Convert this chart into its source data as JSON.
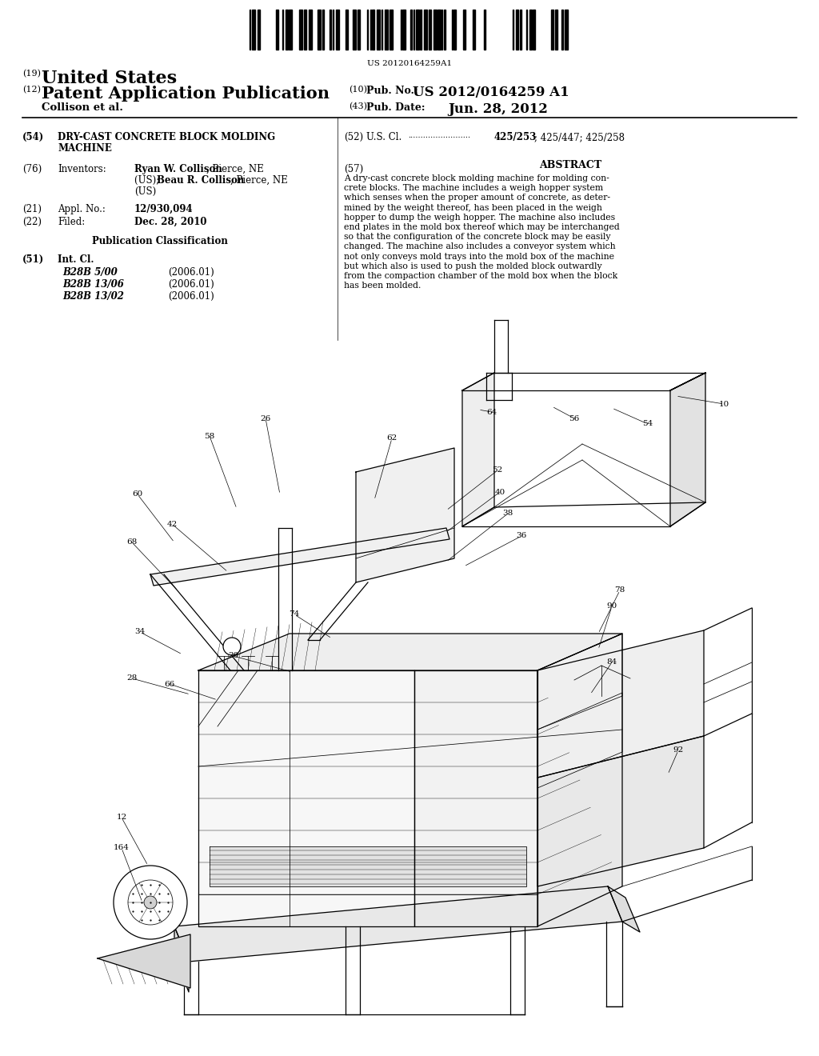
{
  "background_color": "#ffffff",
  "barcode_text": "US 20120164259A1",
  "header": {
    "num19": "(19)",
    "title19": "United States",
    "num12": "(12)",
    "title12": "Patent Application Publication",
    "num10": "(10)",
    "label10": "Pub. No.:",
    "pubno": "US 2012/0164259 A1",
    "author": "Collison et al.",
    "num43": "(43)",
    "label43": "Pub. Date:",
    "pubdate": "Jun. 28, 2012"
  },
  "left_col": {
    "num54": "(54)",
    "title54_line1": "DRY-CAST CONCRETE BLOCK MOLDING",
    "title54_line2": "MACHINE",
    "num76": "(76)",
    "label76": "Inventors:",
    "inv1_bold": "Ryan W. Collison",
    "inv1_rest": ", Pierce, NE",
    "inv2_pre": "(US); ",
    "inv2_bold": "Beau R. Collison",
    "inv2_rest": ", Pierce, NE",
    "inv3": "(US)",
    "num21": "(21)",
    "label21": "Appl. No.:",
    "appl_no": "12/930,094",
    "num22": "(22)",
    "label22": "Filed:",
    "filed": "Dec. 28, 2010",
    "pub_class_title": "Publication Classification",
    "num51": "(51)",
    "label51": "Int. Cl.",
    "classes": [
      [
        "B28B 5/00",
        "(2006.01)"
      ],
      [
        "B28B 13/06",
        "(2006.01)"
      ],
      [
        "B28B 13/02",
        "(2006.01)"
      ]
    ]
  },
  "right_col": {
    "num52": "(52)",
    "label52": "U.S. Cl.",
    "dots": ".........................",
    "us_cl_bold": "425/253",
    "us_cl_rest": "; 425/447; 425/258",
    "num57": "(57)",
    "abstract_title": "ABSTRACT",
    "abstract_text": "A dry-cast concrete block molding machine for molding con-crete blocks. The machine includes a weigh hopper system which senses when the proper amount of concrete, as deter-mined by the weight thereof, has been placed in the weigh hopper to dump the weigh hopper. The machine also includes end plates in the mold box thereof which may be interchanged so that the configuration of the concrete block may be easily changed. The machine also includes a conveyor system which not only conveys mold trays into the mold box of the machine but which also is used to push the molded block outwardly from the compaction chamber of the mold box when the block has been molded."
  },
  "diagram_label_defs": [
    [
      "10",
      905,
      505,
      845,
      495
    ],
    [
      "54",
      810,
      530,
      765,
      510
    ],
    [
      "56",
      718,
      523,
      690,
      508
    ],
    [
      "64",
      615,
      515,
      598,
      512
    ],
    [
      "62",
      490,
      548,
      468,
      625
    ],
    [
      "26",
      332,
      523,
      350,
      618
    ],
    [
      "58",
      262,
      545,
      296,
      636
    ],
    [
      "60",
      172,
      618,
      218,
      678
    ],
    [
      "42",
      215,
      655,
      285,
      715
    ],
    [
      "68",
      165,
      678,
      222,
      738
    ],
    [
      "34",
      175,
      790,
      228,
      818
    ],
    [
      "28",
      165,
      848,
      238,
      868
    ],
    [
      "66",
      212,
      855,
      272,
      875
    ],
    [
      "30",
      292,
      820,
      365,
      840
    ],
    [
      "74",
      368,
      768,
      415,
      798
    ],
    [
      "52",
      622,
      588,
      558,
      638
    ],
    [
      "40",
      625,
      615,
      558,
      665
    ],
    [
      "38",
      635,
      642,
      558,
      702
    ],
    [
      "36",
      652,
      670,
      580,
      708
    ],
    [
      "78",
      775,
      738,
      748,
      792
    ],
    [
      "90",
      765,
      758,
      748,
      812
    ],
    [
      "84",
      765,
      828,
      738,
      868
    ],
    [
      "92",
      848,
      938,
      835,
      968
    ],
    [
      "12",
      152,
      1022,
      185,
      1082
    ],
    [
      "164",
      152,
      1060,
      178,
      1128
    ]
  ]
}
